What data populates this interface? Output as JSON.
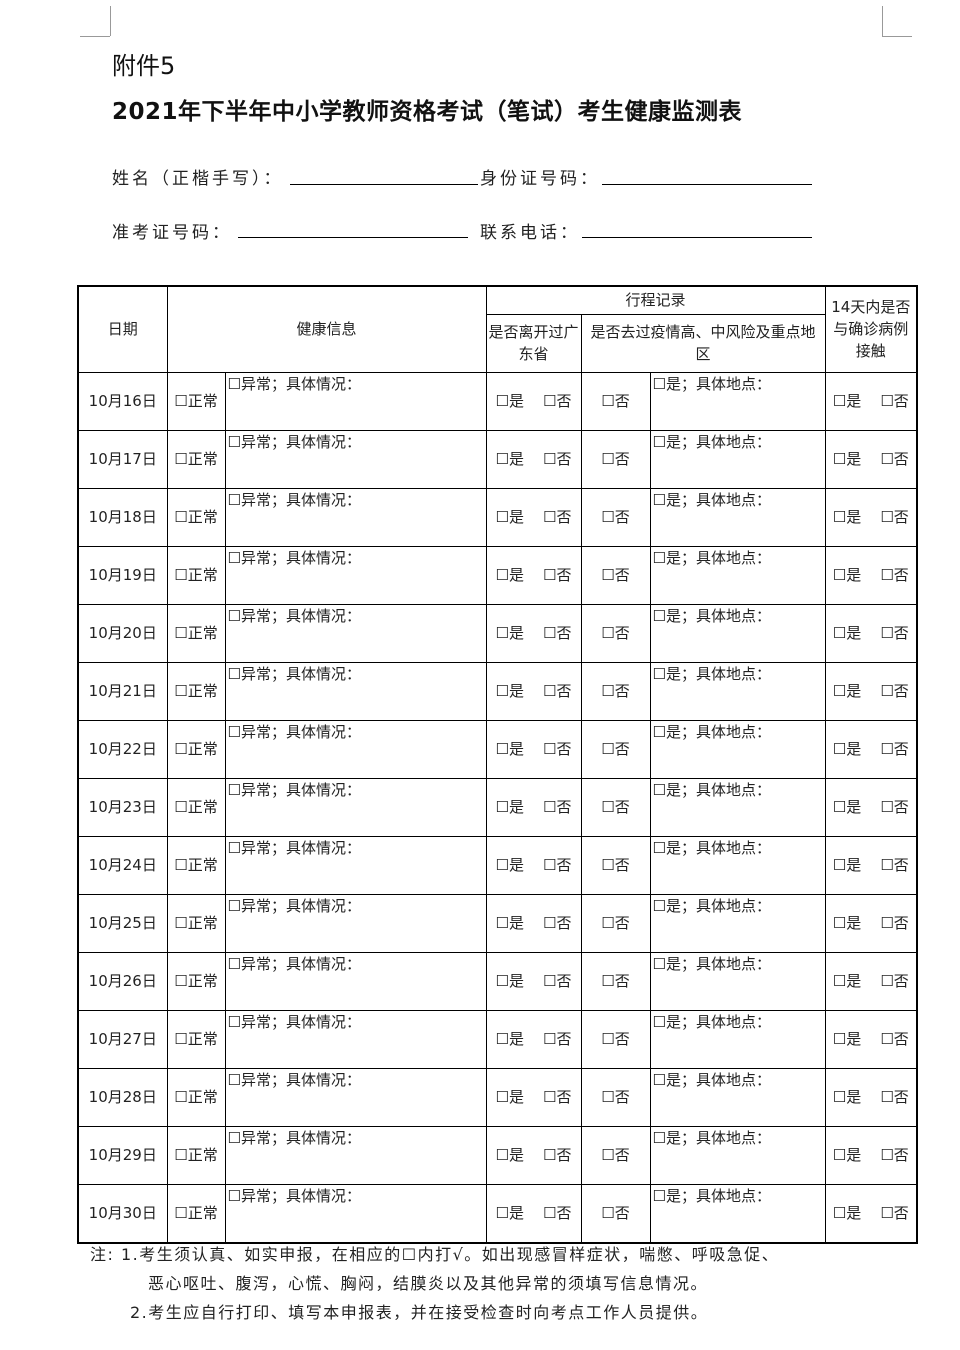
{
  "annex": "附件5",
  "title": "2021年下半年中小学教师资格考试（笔试）考生健康监测表",
  "fields": {
    "name": "姓名（正楷手写）：",
    "id": "身份证号码：",
    "ticket": "准考证号码：",
    "phone": "联系电话："
  },
  "headers": {
    "date": "日期",
    "health": "健康信息",
    "travel": "行程记录",
    "left_gd": "是否离开过广东省",
    "risk": "是否去过疫情高、中风险及重点地区",
    "contact": "14天内是否与确诊病例接触"
  },
  "cells": {
    "normal": "☐正常",
    "abnormal": "☐异常；具体情况：",
    "yes": "☐是",
    "no": "☐否",
    "yes_place": "☐是；具体地点："
  },
  "dates": [
    "10月16日",
    "10月17日",
    "10月18日",
    "10月19日",
    "10月20日",
    "10月21日",
    "10月22日",
    "10月23日",
    "10月24日",
    "10月25日",
    "10月26日",
    "10月27日",
    "10月28日",
    "10月29日",
    "10月30日"
  ],
  "notes": [
    "注: 1.考生须认真、如实申报，在相应的☐内打√。如出现感冒样症状，喘憋、呼吸急促、",
    "恶心呕吐、腹泻，心慌、胸闷，结膜炎以及其他异常的须填写信息情况。",
    "2.考生应自行打印、填写本申报表，并在接受检查时向考点工作人员提供。"
  ]
}
